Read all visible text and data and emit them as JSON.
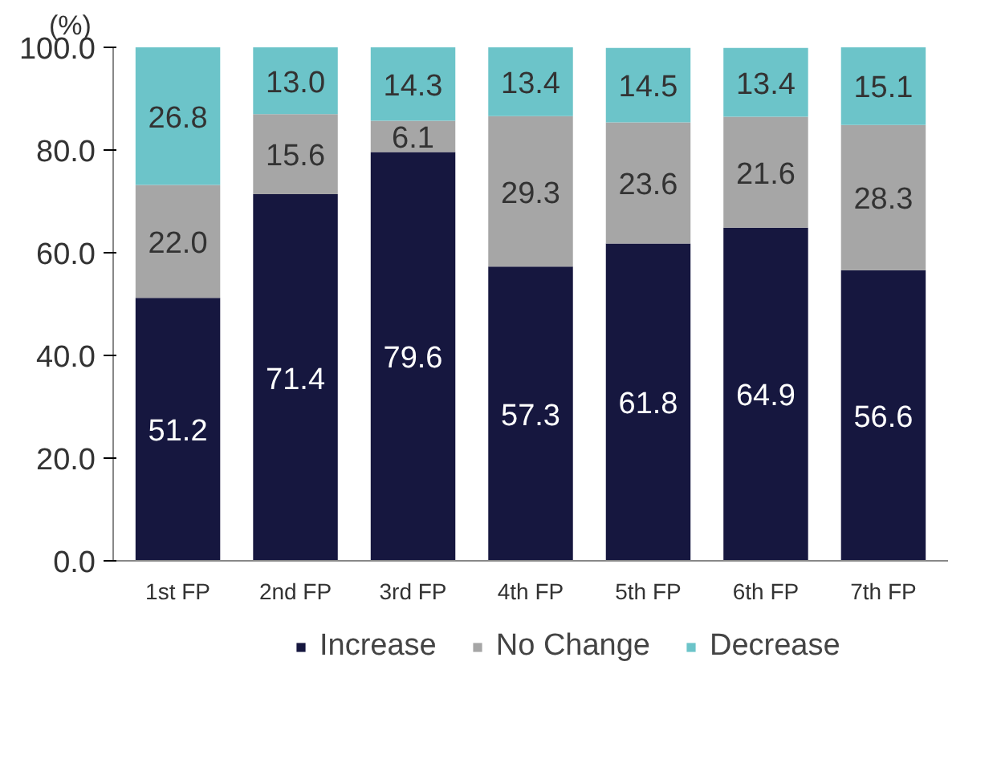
{
  "chart_data": {
    "type": "bar",
    "stacked": true,
    "ylabel": "(%)",
    "categories": [
      "1st FP",
      "2nd FP",
      "3rd FP",
      "4th FP",
      "5th FP",
      "6th FP",
      "7th FP"
    ],
    "ylim": [
      0,
      100
    ],
    "yticks": [
      {
        "value": 0,
        "label": "0.0"
      },
      {
        "value": 20,
        "label": "20.0"
      },
      {
        "value": 40,
        "label": "40.0"
      },
      {
        "value": 60,
        "label": "60.0"
      },
      {
        "value": 80,
        "label": "80.0"
      },
      {
        "value": 100,
        "label": "100.0"
      }
    ],
    "grid": false,
    "legend": "bottom",
    "series": [
      {
        "name": "Increase",
        "color": "#16173f",
        "values": [
          51.2,
          71.4,
          79.6,
          57.3,
          61.8,
          64.9,
          56.6
        ],
        "value_labels": [
          "51.2",
          "71.4",
          "79.6",
          "57.3",
          "61.8",
          "64.9",
          "56.6"
        ]
      },
      {
        "name": "No Change",
        "color": "#a6a6a6",
        "values": [
          22.0,
          15.6,
          6.1,
          29.3,
          23.6,
          21.6,
          28.3
        ],
        "value_labels": [
          "22.0",
          "15.6",
          "6.1",
          "29.3",
          "23.6",
          "21.6",
          "28.3"
        ]
      },
      {
        "name": "Decrease",
        "color": "#6cc4c9",
        "values": [
          26.8,
          13.0,
          14.3,
          13.4,
          14.5,
          13.4,
          15.1
        ],
        "value_labels": [
          "26.8",
          "13.0",
          "14.3",
          "13.4",
          "14.5",
          "13.4",
          "15.1"
        ]
      }
    ]
  }
}
